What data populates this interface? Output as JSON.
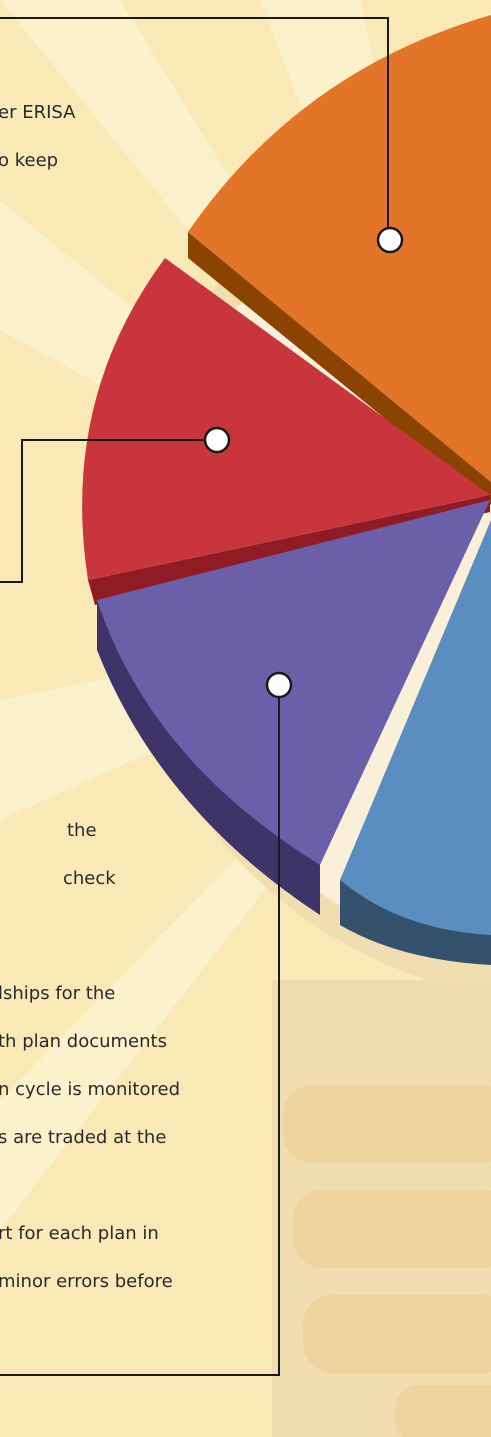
{
  "text_blocks": [
    {
      "lines": [
        "er ERISA",
        "o keep"
      ]
    },
    {
      "lines": [
        "the",
        "check"
      ]
    },
    {
      "lines": [
        "lships for the",
        "th plan documents",
        "n cycle is monitored",
        "s are traded at the"
      ]
    },
    {
      "lines": [
        "rt for each plan in",
        "minor errors before"
      ]
    }
  ]
}
